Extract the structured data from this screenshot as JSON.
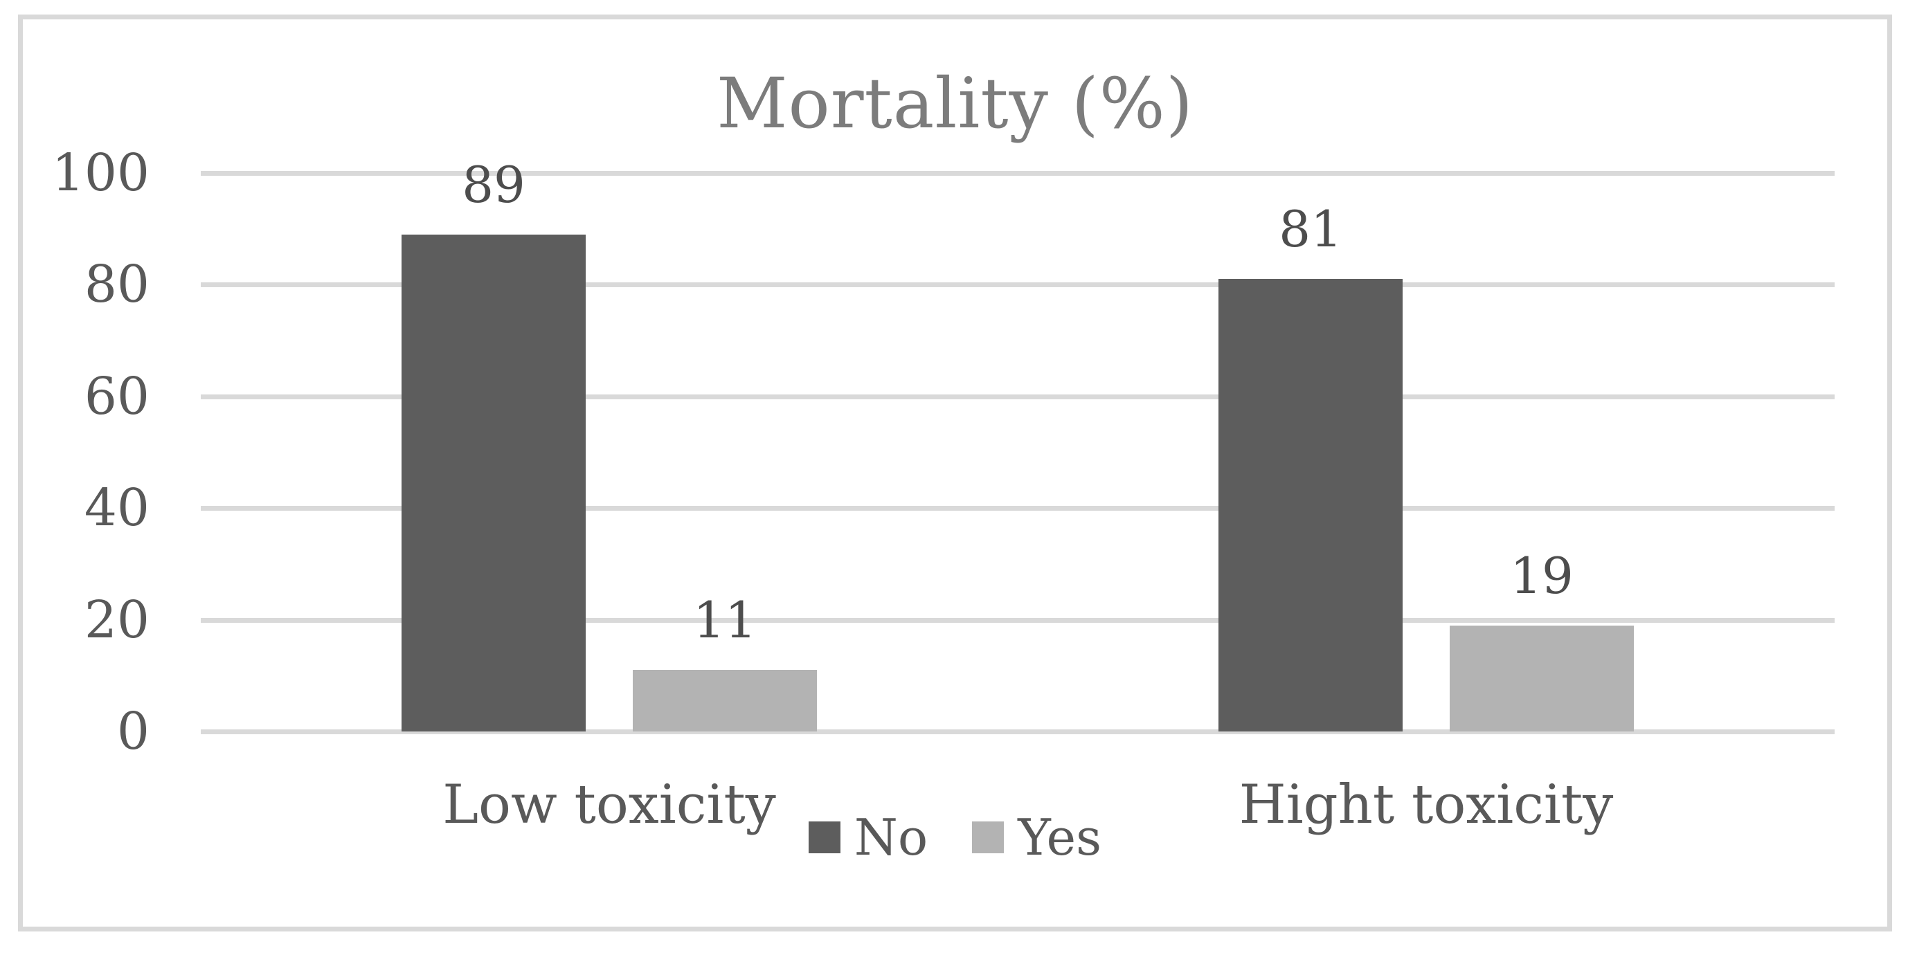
{
  "chart_data": {
    "type": "bar",
    "title": "Mortality (%)",
    "categories": [
      "Low toxicity",
      "Hight toxicity"
    ],
    "series": [
      {
        "name": "No",
        "color": "#5d5d5d",
        "values": [
          89,
          81
        ]
      },
      {
        "name": "Yes",
        "color": "#b3b3b3",
        "values": [
          11,
          19
        ]
      }
    ],
    "xlabel": "",
    "ylabel": "",
    "ylim": [
      0,
      100
    ],
    "yticks": [
      0,
      20,
      40,
      60,
      80,
      100
    ],
    "grid": true,
    "legend_position": "bottom",
    "data_labels_shown": true
  },
  "colors": {
    "frame_border": "#d9d9d9",
    "gridline": "#d9d9d9",
    "title_text": "#7c7c7c",
    "axis_text": "#595959",
    "data_label_text": "#4d4d4d",
    "background": "#ffffff"
  }
}
